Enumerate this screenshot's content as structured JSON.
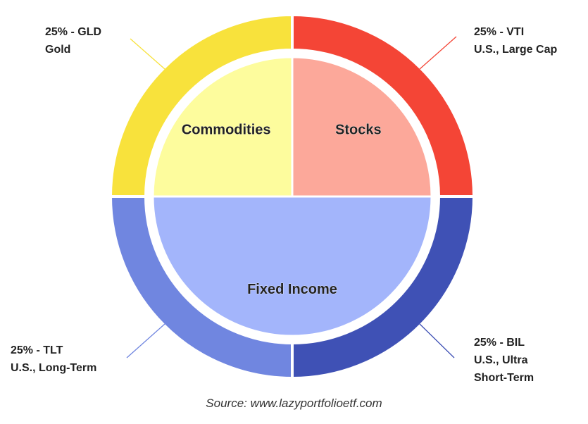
{
  "chart_data": {
    "type": "sunburst",
    "source": "Source: www.lazyportfolioetf.com",
    "inner": {
      "categories": [
        "Stocks",
        "Fixed Income",
        "Commodities"
      ],
      "values": [
        25,
        50,
        25
      ],
      "colors": [
        "#fca89a",
        "#a3b5fb",
        "#fdfc9d"
      ]
    },
    "outer": {
      "values": [
        25,
        25,
        25,
        25
      ],
      "value_labels": [
        "25% - VTI",
        "25% - BIL",
        "25% - TLT",
        "25% - GLD"
      ],
      "descriptions": [
        "U.S., Large Cap",
        "U.S., Ultra Short-Term",
        "U.S., Long-Term",
        "Gold"
      ],
      "colors": [
        "#f44536",
        "#3f51b5",
        "#7086e0",
        "#f8e23c"
      ]
    }
  }
}
